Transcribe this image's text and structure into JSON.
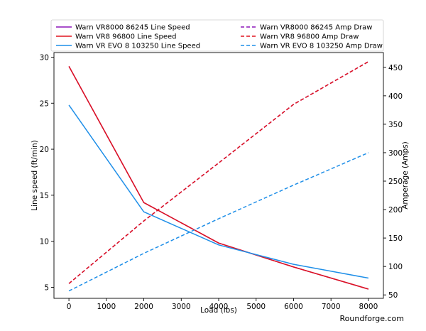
{
  "chart_data": {
    "type": "line",
    "xlabel": "Load (lbs)",
    "ylabel_left": "Line speed (ft/min)",
    "ylabel_right": "Amperage (Amps)",
    "x": [
      0,
      2000,
      4000,
      6000,
      8000
    ],
    "x_ticks": [
      0,
      1000,
      2000,
      3000,
      4000,
      5000,
      6000,
      7000,
      8000
    ],
    "xlim": [
      -400,
      8400
    ],
    "ylim_left": [
      3.8,
      30.5
    ],
    "yticks_left": [
      5,
      10,
      15,
      20,
      25,
      30
    ],
    "ylim_right": [
      44,
      476
    ],
    "yticks_right": [
      50,
      100,
      150,
      200,
      250,
      300,
      350,
      400,
      450
    ],
    "legend_placement": "top, two columns",
    "grid": false,
    "series": [
      {
        "name": "Warn VR8000 86245 Line Speed",
        "axis": "left",
        "style": "solid",
        "color": "#8b16b8",
        "values": [
          29,
          14.2,
          9.8,
          7.2,
          4.8
        ]
      },
      {
        "name": "Warn VR8 96800 Line Speed",
        "axis": "left",
        "style": "solid",
        "color": "#e0141e",
        "values": [
          29,
          14.2,
          9.8,
          7.2,
          4.8
        ]
      },
      {
        "name": "Warn VR EVO 8 103250 Line Speed",
        "axis": "left",
        "style": "solid",
        "color": "#1f8fe8",
        "values": [
          24.8,
          13.2,
          9.6,
          7.5,
          6.0
        ]
      },
      {
        "name": "Warn VR8000 86245 Amp Draw",
        "axis": "right",
        "style": "dashed",
        "color": "#8b16b8",
        "values": [
          70,
          180,
          282,
          385,
          460
        ]
      },
      {
        "name": "Warn VR8 96800 Amp Draw",
        "axis": "right",
        "style": "dashed",
        "color": "#e0141e",
        "values": [
          70,
          180,
          282,
          385,
          460
        ]
      },
      {
        "name": "Warn VR EVO 8 103250 Amp Draw",
        "axis": "right",
        "style": "dashed",
        "color": "#1f8fe8",
        "values": [
          57,
          123,
          184,
          243,
          300
        ]
      }
    ]
  },
  "watermark": "Roundforge.com"
}
